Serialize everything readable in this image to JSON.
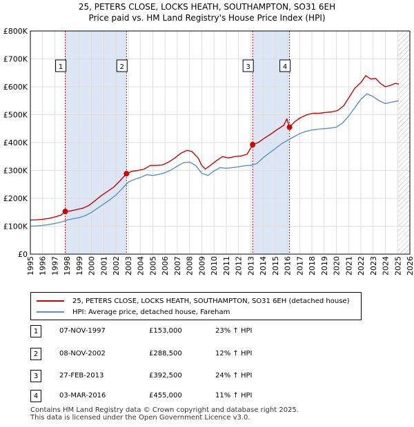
{
  "header": {
    "title": "25, PETERS CLOSE, LOCKS HEATH, SOUTHAMPTON, SO31 6EH",
    "subtitle": "Price paid vs. HM Land Registry's House Price Index (HPI)"
  },
  "legend": {
    "property_label": "25, PETERS CLOSE, LOCKS HEATH, SOUTHAMPTON, SO31 6EH (detached house)",
    "hpi_label": "HPI: Average price, detached house, Fareham"
  },
  "sales": [
    {
      "num": "1",
      "date": "07-NOV-1997",
      "price": "£153,000",
      "hpi": "23% ↑ HPI"
    },
    {
      "num": "2",
      "date": "08-NOV-2002",
      "price": "£288,500",
      "hpi": "12% ↑ HPI"
    },
    {
      "num": "3",
      "date": "27-FEB-2013",
      "price": "£392,500",
      "hpi": "24% ↑ HPI"
    },
    {
      "num": "4",
      "date": "03-MAR-2016",
      "price": "£455,000",
      "hpi": "11% ↑ HPI"
    }
  ],
  "footer": {
    "line1": "Contains HM Land Registry data © Crown copyright and database right 2025.",
    "line2": "This data is licensed under the Open Government Licence v3.0."
  },
  "colors": {
    "property": "#cc0000",
    "hpi": "#5b8fc7",
    "shade": "#dce6f5",
    "vline": "#cc0000",
    "grid": "#dddddd"
  },
  "chart_data": {
    "type": "line",
    "xlim": [
      1995,
      2026
    ],
    "ylim": [
      0,
      800000
    ],
    "x_ticks": [
      "1995",
      "1996",
      "1997",
      "1998",
      "1999",
      "2000",
      "2001",
      "2002",
      "2003",
      "2004",
      "2005",
      "2006",
      "2007",
      "2008",
      "2009",
      "2010",
      "2011",
      "2012",
      "2013",
      "2014",
      "2015",
      "2016",
      "2017",
      "2018",
      "2019",
      "2020",
      "2021",
      "2022",
      "2023",
      "2024",
      "2025",
      "2026"
    ],
    "y_ticks": [
      {
        "value": 0,
        "label": "£0"
      },
      {
        "value": 100000,
        "label": "£100K"
      },
      {
        "value": 200000,
        "label": "£200K"
      },
      {
        "value": 300000,
        "label": "£300K"
      },
      {
        "value": 400000,
        "label": "£400K"
      },
      {
        "value": 500000,
        "label": "£500K"
      },
      {
        "value": 600000,
        "label": "£600K"
      },
      {
        "value": 700000,
        "label": "£700K"
      },
      {
        "value": 800000,
        "label": "£800K"
      }
    ],
    "shaded_ranges": [
      [
        1997.85,
        2002.85
      ],
      [
        2013.16,
        2016.17
      ]
    ],
    "hatched_from": 2025.0,
    "sale_markers": [
      {
        "label": "1",
        "x": 1997.85,
        "y": 153000
      },
      {
        "label": "2",
        "x": 2002.85,
        "y": 288500
      },
      {
        "label": "3",
        "x": 2013.16,
        "y": 392500
      },
      {
        "label": "4",
        "x": 2016.17,
        "y": 455000
      }
    ],
    "series": [
      {
        "name": "25, PETERS CLOSE, LOCKS HEATH, SOUTHAMPTON, SO31 6EH (detached house)",
        "points": [
          [
            1995.0,
            122000
          ],
          [
            1995.5,
            123000
          ],
          [
            1996.0,
            125000
          ],
          [
            1996.5,
            128000
          ],
          [
            1997.0,
            133000
          ],
          [
            1997.5,
            140000
          ],
          [
            1997.85,
            153000
          ],
          [
            1998.3,
            155000
          ],
          [
            1998.8,
            160000
          ],
          [
            1999.3,
            165000
          ],
          [
            1999.8,
            175000
          ],
          [
            2000.3,
            192000
          ],
          [
            2000.8,
            210000
          ],
          [
            2001.3,
            225000
          ],
          [
            2001.8,
            240000
          ],
          [
            2002.3,
            262000
          ],
          [
            2002.85,
            288500
          ],
          [
            2003.3,
            297000
          ],
          [
            2003.8,
            300000
          ],
          [
            2004.3,
            305000
          ],
          [
            2004.8,
            318000
          ],
          [
            2005.3,
            318000
          ],
          [
            2005.8,
            320000
          ],
          [
            2006.3,
            330000
          ],
          [
            2006.8,
            345000
          ],
          [
            2007.3,
            362000
          ],
          [
            2007.8,
            372000
          ],
          [
            2008.2,
            368000
          ],
          [
            2008.7,
            345000
          ],
          [
            2009.0,
            318000
          ],
          [
            2009.3,
            305000
          ],
          [
            2009.7,
            318000
          ],
          [
            2010.2,
            335000
          ],
          [
            2010.7,
            350000
          ],
          [
            2011.2,
            345000
          ],
          [
            2011.7,
            350000
          ],
          [
            2012.2,
            352000
          ],
          [
            2012.7,
            358000
          ],
          [
            2013.16,
            392500
          ],
          [
            2013.6,
            400000
          ],
          [
            2014.2,
            418000
          ],
          [
            2014.7,
            432000
          ],
          [
            2015.2,
            448000
          ],
          [
            2015.7,
            462000
          ],
          [
            2015.95,
            485000
          ],
          [
            2016.17,
            455000
          ],
          [
            2016.6,
            475000
          ],
          [
            2017.1,
            490000
          ],
          [
            2017.6,
            500000
          ],
          [
            2018.1,
            505000
          ],
          [
            2018.6,
            505000
          ],
          [
            2019.1,
            508000
          ],
          [
            2019.6,
            510000
          ],
          [
            2020.1,
            515000
          ],
          [
            2020.6,
            532000
          ],
          [
            2021.0,
            560000
          ],
          [
            2021.5,
            595000
          ],
          [
            2022.0,
            615000
          ],
          [
            2022.4,
            640000
          ],
          [
            2022.8,
            628000
          ],
          [
            2023.2,
            630000
          ],
          [
            2023.6,
            612000
          ],
          [
            2024.0,
            600000
          ],
          [
            2024.4,
            605000
          ],
          [
            2024.8,
            612000
          ],
          [
            2025.1,
            610000
          ]
        ]
      },
      {
        "name": "HPI: Average price, detached house, Fareham",
        "points": [
          [
            1995.0,
            100000
          ],
          [
            1995.5,
            101000
          ],
          [
            1996.0,
            103000
          ],
          [
            1996.5,
            106000
          ],
          [
            1997.0,
            110000
          ],
          [
            1997.5,
            115000
          ],
          [
            1998.0,
            122000
          ],
          [
            1998.5,
            127000
          ],
          [
            1999.0,
            131000
          ],
          [
            1999.5,
            138000
          ],
          [
            2000.0,
            150000
          ],
          [
            2000.5,
            165000
          ],
          [
            2001.0,
            180000
          ],
          [
            2001.5,
            195000
          ],
          [
            2002.0,
            212000
          ],
          [
            2002.5,
            235000
          ],
          [
            2003.0,
            258000
          ],
          [
            2003.5,
            268000
          ],
          [
            2004.0,
            275000
          ],
          [
            2004.5,
            285000
          ],
          [
            2005.0,
            282000
          ],
          [
            2005.5,
            286000
          ],
          [
            2006.0,
            292000
          ],
          [
            2006.5,
            302000
          ],
          [
            2007.0,
            315000
          ],
          [
            2007.5,
            328000
          ],
          [
            2008.0,
            330000
          ],
          [
            2008.5,
            318000
          ],
          [
            2009.0,
            290000
          ],
          [
            2009.5,
            282000
          ],
          [
            2010.0,
            298000
          ],
          [
            2010.5,
            310000
          ],
          [
            2011.0,
            308000
          ],
          [
            2011.5,
            310000
          ],
          [
            2012.0,
            313000
          ],
          [
            2012.5,
            317000
          ],
          [
            2013.0,
            318000
          ],
          [
            2013.5,
            325000
          ],
          [
            2014.0,
            345000
          ],
          [
            2014.5,
            362000
          ],
          [
            2015.0,
            378000
          ],
          [
            2015.5,
            395000
          ],
          [
            2016.0,
            408000
          ],
          [
            2016.5,
            420000
          ],
          [
            2017.0,
            432000
          ],
          [
            2017.5,
            440000
          ],
          [
            2018.0,
            445000
          ],
          [
            2018.5,
            448000
          ],
          [
            2019.0,
            450000
          ],
          [
            2019.5,
            452000
          ],
          [
            2020.0,
            455000
          ],
          [
            2020.5,
            470000
          ],
          [
            2021.0,
            495000
          ],
          [
            2021.5,
            525000
          ],
          [
            2022.0,
            555000
          ],
          [
            2022.5,
            575000
          ],
          [
            2023.0,
            565000
          ],
          [
            2023.5,
            550000
          ],
          [
            2024.0,
            540000
          ],
          [
            2024.5,
            545000
          ],
          [
            2025.1,
            550000
          ]
        ]
      }
    ]
  }
}
